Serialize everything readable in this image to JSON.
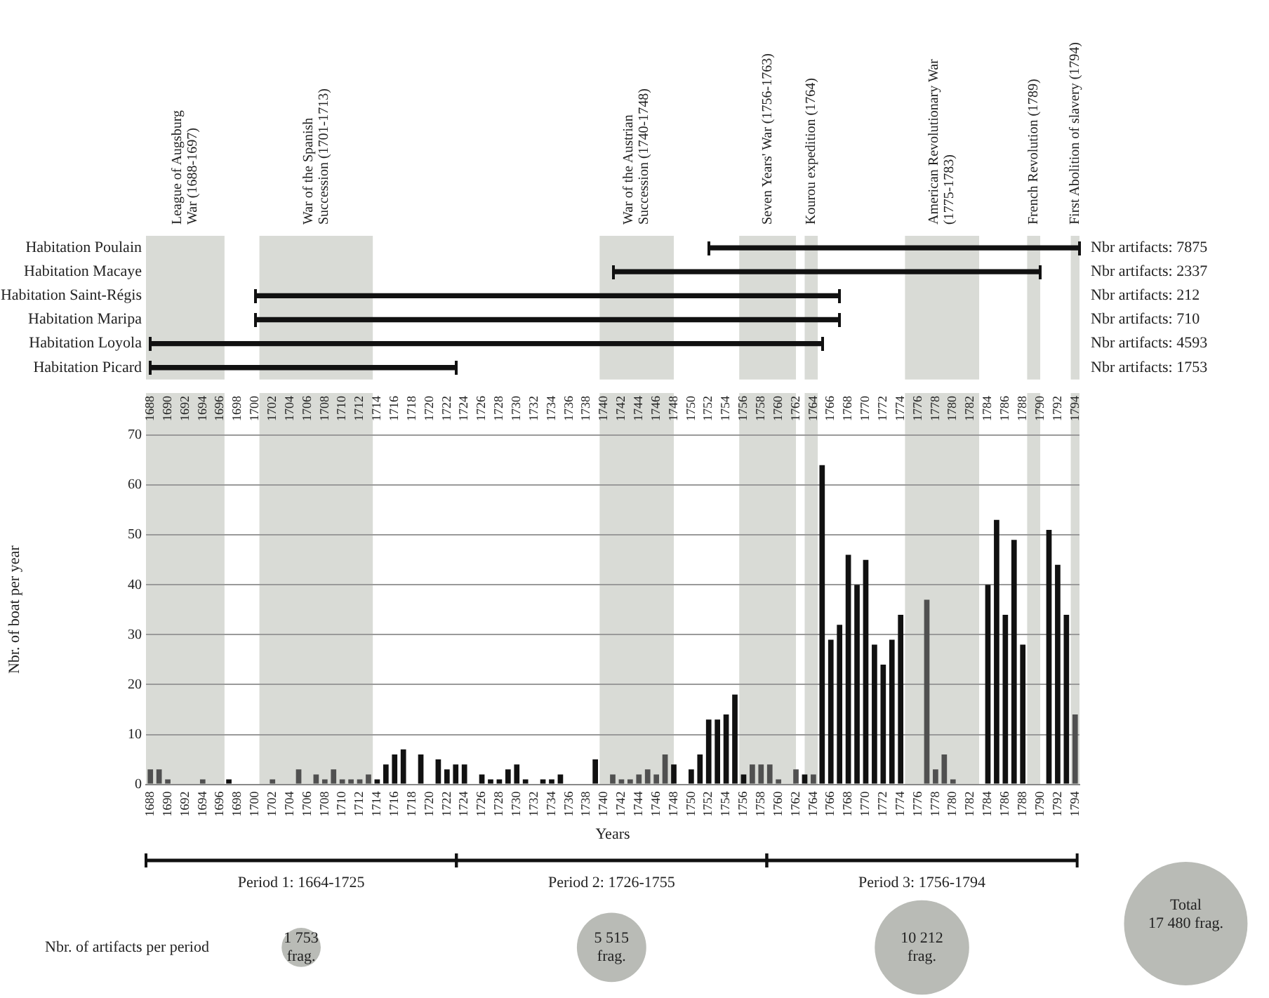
{
  "chart_data": [
    {
      "type": "bar",
      "orientation": "horizontal",
      "categories": [
        "Habitation Poulain",
        "Habitation Macaye",
        "Habitation Saint-Régis",
        "Habitation Maripa",
        "Habitation Loyola",
        "Habitation Picard"
      ],
      "base": [
        1752,
        1741,
        1700,
        1700,
        1688,
        1688
      ],
      "values": [
        42.5,
        49,
        67,
        67,
        77,
        35
      ],
      "color": "#111111",
      "xlim": [
        1687.5,
        1794.5
      ],
      "tick_labels": "y",
      "annotations": [
        "Nbr artifacts: 7875",
        "Nbr artifacts: 2337",
        "Nbr artifacts: 212",
        "Nbr artifacts: 710",
        "Nbr artifacts: 4593",
        "Nbr artifacts: 1753"
      ],
      "bands": [
        {
          "axis": "x",
          "from": 1687.5,
          "to": 1696.5,
          "label": "League of Augsburg\nWar (1688-1697)",
          "color": "#d9dbd6"
        },
        {
          "axis": "x",
          "from": 1700.5,
          "to": 1713.5,
          "label": "War of the Spanish\nSuccession (1701-1713)",
          "color": "#d9dbd6"
        },
        {
          "axis": "x",
          "from": 1739.5,
          "to": 1748,
          "label": "War of the Austrian\nSuccession (1740-1748)",
          "color": "#d9dbd6"
        },
        {
          "axis": "x",
          "from": 1755.5,
          "to": 1762,
          "label": "Seven Years' War (1756-1763)",
          "color": "#d9dbd6"
        },
        {
          "axis": "x",
          "from": 1763,
          "to": 1764.5,
          "label": "Kourou expedition (1764)",
          "color": "#d9dbd6"
        },
        {
          "axis": "x",
          "from": 1774.5,
          "to": 1783,
          "label": "American Revolutionary War\n(1775-1783)",
          "color": "#d9dbd6"
        },
        {
          "axis": "x",
          "from": 1788.5,
          "to": 1790,
          "label": "French Revolution (1789)",
          "color": "#d9dbd6"
        },
        {
          "axis": "x",
          "from": 1793.5,
          "to": 1794.5,
          "label": "First Abolition of slavery (1794)",
          "color": "#d9dbd6"
        }
      ]
    },
    {
      "type": "bar",
      "xlabel": "Years",
      "ylabel": "Nbr. of boat per year",
      "grid": "y",
      "x": [
        1688,
        1689,
        1690,
        1691,
        1692,
        1693,
        1694,
        1695,
        1696,
        1697,
        1698,
        1699,
        1700,
        1701,
        1702,
        1703,
        1704,
        1705,
        1706,
        1707,
        1708,
        1709,
        1710,
        1711,
        1712,
        1713,
        1714,
        1715,
        1716,
        1717,
        1718,
        1719,
        1720,
        1721,
        1722,
        1723,
        1724,
        1725,
        1726,
        1727,
        1728,
        1729,
        1730,
        1731,
        1732,
        1733,
        1734,
        1735,
        1736,
        1737,
        1738,
        1739,
        1740,
        1741,
        1742,
        1743,
        1744,
        1745,
        1746,
        1747,
        1748,
        1749,
        1750,
        1751,
        1752,
        1753,
        1754,
        1755,
        1756,
        1757,
        1758,
        1759,
        1760,
        1761,
        1762,
        1763,
        1764,
        1765,
        1766,
        1767,
        1768,
        1769,
        1770,
        1771,
        1772,
        1773,
        1774,
        1775,
        1776,
        1777,
        1778,
        1779,
        1780,
        1781,
        1782,
        1783,
        1784,
        1785,
        1786,
        1787,
        1788,
        1789,
        1790,
        1791,
        1792,
        1793,
        1794
      ],
      "values": [
        3,
        3,
        1,
        0,
        0,
        0,
        1,
        0,
        0,
        1,
        0,
        0,
        0,
        0,
        1,
        0,
        0,
        3,
        0,
        2,
        1,
        3,
        1,
        1,
        1,
        2,
        1,
        4,
        6,
        7,
        0,
        6,
        0,
        5,
        3,
        4,
        4,
        0,
        2,
        1,
        1,
        3,
        4,
        1,
        0,
        1,
        1,
        2,
        0,
        0,
        0,
        5,
        0,
        2,
        1,
        1,
        2,
        3,
        2,
        6,
        4,
        0,
        3,
        6,
        13,
        13,
        14,
        18,
        2,
        4,
        4,
        4,
        1,
        0,
        3,
        2,
        2,
        64,
        29,
        32,
        46,
        40,
        45,
        28,
        24,
        29,
        34,
        0,
        0,
        37,
        3,
        6,
        1,
        0,
        0,
        0,
        40,
        53,
        34,
        49,
        28,
        0,
        0,
        51,
        44,
        34,
        14
      ],
      "colors": [
        "#505050",
        "#505050",
        "#505050",
        "#505050",
        "#505050",
        "#505050",
        "#505050",
        "#505050",
        "#505050",
        "#111111",
        "#111111",
        "#111111",
        "#111111",
        "#505050",
        "#505050",
        "#505050",
        "#505050",
        "#505050",
        "#505050",
        "#505050",
        "#505050",
        "#505050",
        "#505050",
        "#505050",
        "#505050",
        "#505050",
        "#111111",
        "#111111",
        "#111111",
        "#111111",
        "#111111",
        "#111111",
        "#111111",
        "#111111",
        "#111111",
        "#111111",
        "#111111",
        "#111111",
        "#111111",
        "#111111",
        "#111111",
        "#111111",
        "#111111",
        "#111111",
        "#111111",
        "#111111",
        "#111111",
        "#111111",
        "#111111",
        "#111111",
        "#111111",
        "#111111",
        "#111111",
        "#505050",
        "#505050",
        "#505050",
        "#505050",
        "#505050",
        "#505050",
        "#505050",
        "#111111",
        "#111111",
        "#111111",
        "#111111",
        "#111111",
        "#111111",
        "#111111",
        "#111111",
        "#111111",
        "#505050",
        "#505050",
        "#505050",
        "#505050",
        "#505050",
        "#505050",
        "#111111",
        "#505050",
        "#111111",
        "#111111",
        "#111111",
        "#111111",
        "#111111",
        "#111111",
        "#111111",
        "#111111",
        "#111111",
        "#111111",
        "#111111",
        "#111111",
        "#505050",
        "#505050",
        "#505050",
        "#505050",
        "#111111",
        "#111111",
        "#111111",
        "#111111",
        "#111111",
        "#111111",
        "#111111",
        "#111111",
        "#111111",
        "#111111",
        "#111111",
        "#111111",
        "#111111",
        "#505050"
      ],
      "xlim": [
        1687.5,
        1794.5
      ],
      "xticks": [
        1688,
        1690,
        1692,
        1694,
        1696,
        1698,
        1700,
        1702,
        1704,
        1706,
        1708,
        1710,
        1712,
        1714,
        1716,
        1718,
        1720,
        1722,
        1724,
        1726,
        1728,
        1730,
        1732,
        1734,
        1736,
        1738,
        1740,
        1742,
        1744,
        1746,
        1748,
        1750,
        1752,
        1754,
        1756,
        1758,
        1760,
        1762,
        1764,
        1766,
        1768,
        1770,
        1772,
        1774,
        1776,
        1778,
        1780,
        1782,
        1784,
        1786,
        1788,
        1790,
        1792,
        1794
      ],
      "x2lim": [
        1687.5,
        1794.5
      ],
      "x2ticks": [
        1688,
        1690,
        1692,
        1694,
        1696,
        1698,
        1700,
        1702,
        1704,
        1706,
        1708,
        1710,
        1712,
        1714,
        1716,
        1718,
        1720,
        1722,
        1724,
        1726,
        1728,
        1730,
        1732,
        1734,
        1736,
        1738,
        1740,
        1742,
        1744,
        1746,
        1748,
        1750,
        1752,
        1754,
        1756,
        1758,
        1760,
        1762,
        1764,
        1766,
        1768,
        1770,
        1772,
        1774,
        1776,
        1778,
        1780,
        1782,
        1784,
        1786,
        1788,
        1790,
        1792,
        1794
      ],
      "ylim": [
        0,
        70
      ],
      "yticks": [
        0,
        10,
        20,
        30,
        40,
        50,
        60,
        70
      ],
      "bands": [
        {
          "axis": "x",
          "from": 1687.5,
          "to": 1696.5,
          "color": "#d9dbd6"
        },
        {
          "axis": "x",
          "from": 1700.5,
          "to": 1713.5,
          "color": "#d9dbd6"
        },
        {
          "axis": "x",
          "from": 1739.5,
          "to": 1748,
          "color": "#d9dbd6"
        },
        {
          "axis": "x",
          "from": 1755.5,
          "to": 1762,
          "color": "#d9dbd6"
        },
        {
          "axis": "x",
          "from": 1763,
          "to": 1764.5,
          "color": "#d9dbd6"
        },
        {
          "axis": "x",
          "from": 1774.5,
          "to": 1783,
          "color": "#d9dbd6"
        },
        {
          "axis": "x",
          "from": 1788.5,
          "to": 1790,
          "color": "#d9dbd6"
        },
        {
          "axis": "x",
          "from": 1793.5,
          "to": 1794.5,
          "color": "#d9dbd6"
        }
      ]
    },
    {
      "type": "other",
      "ylabel": "Nbr. of artifacts per period",
      "color": "#b9bbb6",
      "categories": [
        "Period 1: 1664-1725",
        "Period 2: 1726-1755",
        "Period 3: 1756-1794",
        null
      ],
      "values": [
        1753,
        5515,
        10212,
        17480
      ],
      "value_labels": [
        "1 753\nfrag.",
        "5 515\nfrag.",
        "10 212\nfrag.",
        "17 480 frag."
      ],
      "annotations": [
        "Total"
      ]
    }
  ]
}
